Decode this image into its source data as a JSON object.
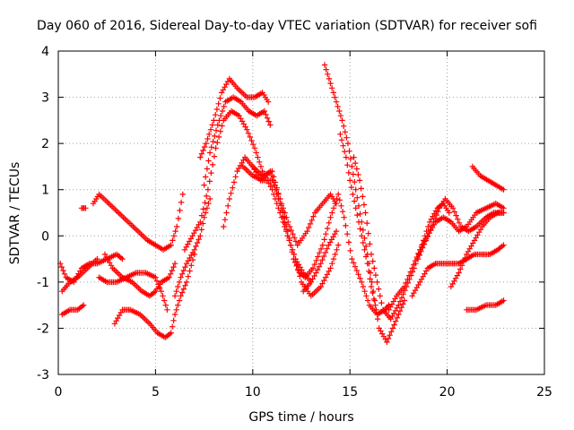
{
  "chart_data": {
    "type": "scatter",
    "title": "Day 060 of 2016, Sidereal Day-to-day VTEC variation (SDTVAR) for receiver sofi",
    "xlabel": "GPS time / hours",
    "ylabel": "SDTVAR / TECUs",
    "xlim": [
      0,
      25
    ],
    "ylim": [
      -3,
      4
    ],
    "x_ticks": [
      "0",
      "5",
      "10",
      "15",
      "20",
      "25"
    ],
    "y_ticks": [
      "-3",
      "-2",
      "-1",
      "0",
      "1",
      "2",
      "3",
      "4"
    ],
    "grid": true,
    "marker": "+",
    "color": "#ff0000",
    "series": [
      {
        "x": [
          0.2,
          0.6,
          1.0,
          1.3
        ],
        "y": [
          -1.7,
          -1.6,
          -1.6,
          -1.5
        ]
      },
      {
        "x": [
          0.2,
          0.6,
          1.0,
          1.5,
          2.0
        ],
        "y": [
          -1.2,
          -1.0,
          -0.9,
          -0.7,
          -0.5
        ]
      },
      {
        "x": [
          0.1,
          0.4,
          0.8,
          1.2,
          1.6,
          2.0,
          2.5,
          3.0,
          3.3
        ],
        "y": [
          -0.6,
          -0.9,
          -1.0,
          -0.7,
          -0.6,
          -0.6,
          -0.5,
          -0.4,
          -0.5
        ]
      },
      {
        "x": [
          1.2,
          1.4
        ],
        "y": [
          0.6,
          0.6
        ]
      },
      {
        "x": [
          1.8,
          2.1,
          2.6,
          3.1,
          3.6,
          4.1,
          4.6,
          5.0,
          5.4,
          5.8,
          6.1,
          6.4
        ],
        "y": [
          0.7,
          0.9,
          0.7,
          0.5,
          0.3,
          0.1,
          -0.1,
          -0.2,
          -0.3,
          -0.2,
          0.2,
          0.9
        ]
      },
      {
        "x": [
          2.1,
          2.5,
          3.0,
          3.5,
          4.0,
          4.5,
          5.0,
          5.3,
          5.6
        ],
        "y": [
          -0.9,
          -1.0,
          -1.0,
          -0.9,
          -0.8,
          -0.8,
          -0.9,
          -1.2,
          -1.6
        ]
      },
      {
        "x": [
          2.4,
          2.8,
          3.3,
          3.8,
          4.3,
          4.7,
          5.0,
          5.3,
          5.7,
          6.0
        ],
        "y": [
          -0.4,
          -0.7,
          -0.9,
          -1.0,
          -1.2,
          -1.3,
          -1.2,
          -1.0,
          -0.9,
          -0.6
        ]
      },
      {
        "x": [
          2.9,
          3.3,
          3.7,
          4.2,
          4.7,
          5.1,
          5.5,
          5.8,
          6.0,
          6.3,
          6.6,
          7.0
        ],
        "y": [
          -1.9,
          -1.6,
          -1.6,
          -1.7,
          -1.9,
          -2.1,
          -2.2,
          -2.1,
          -1.7,
          -1.3,
          -1.0,
          -0.4
        ]
      },
      {
        "x": [
          6.0,
          6.3,
          6.6,
          7.0,
          7.3,
          7.5,
          7.8
        ],
        "y": [
          -1.3,
          -0.9,
          -0.6,
          -0.3,
          0.0,
          0.4,
          0.8
        ]
      },
      {
        "x": [
          7.3,
          7.6,
          8.0,
          8.4,
          8.8,
          9.2,
          9.7,
          10.1,
          10.5,
          10.8
        ],
        "y": [
          1.7,
          2.0,
          2.5,
          3.1,
          3.4,
          3.2,
          3.0,
          3.0,
          3.1,
          2.9
        ]
      },
      {
        "x": [
          7.5,
          7.8,
          8.2,
          8.6,
          9.0,
          9.4,
          9.8,
          10.2,
          10.6,
          10.9
        ],
        "y": [
          1.1,
          1.8,
          2.4,
          2.9,
          3.0,
          2.9,
          2.7,
          2.6,
          2.7,
          2.4
        ]
      },
      {
        "x": [
          6.5,
          6.9,
          7.3,
          7.7,
          8.1,
          8.5,
          8.9,
          9.3,
          9.7,
          10.1,
          10.5,
          11.0,
          11.4,
          11.8,
          12.2,
          12.5,
          13.0,
          13.5,
          14.0,
          14.4
        ],
        "y": [
          -0.3,
          0.0,
          0.3,
          1.0,
          1.9,
          2.5,
          2.7,
          2.6,
          2.3,
          1.9,
          1.4,
          1.0,
          0.5,
          0.0,
          -0.5,
          -1.0,
          -1.3,
          -1.1,
          -0.7,
          -0.2
        ]
      },
      {
        "x": [
          8.5,
          8.8,
          9.2,
          9.6,
          10.0,
          10.4,
          10.9,
          11.4,
          11.9,
          12.3,
          12.8,
          13.2,
          13.6,
          14.0,
          14.3
        ],
        "y": [
          0.2,
          0.8,
          1.4,
          1.7,
          1.5,
          1.2,
          1.4,
          0.8,
          0.2,
          -0.2,
          0.1,
          0.5,
          0.7,
          0.9,
          0.7
        ]
      },
      {
        "x": [
          9.5,
          10.0,
          10.5,
          11.0,
          11.4,
          11.8,
          12.2,
          12.6,
          13.0
        ],
        "y": [
          1.5,
          1.3,
          1.2,
          1.2,
          0.7,
          0.0,
          -0.5,
          -0.8,
          -1.0
        ]
      },
      {
        "x": [
          10.0,
          10.5,
          11.0,
          11.4,
          11.8,
          12.1,
          12.4,
          12.7,
          13.1,
          13.6,
          14.0,
          14.4,
          14.7,
          15.1,
          15.6,
          16.0,
          16.4,
          16.8,
          17.0
        ],
        "y": [
          1.5,
          1.3,
          1.4,
          0.8,
          0.1,
          -0.5,
          -0.8,
          -0.9,
          -0.7,
          -0.2,
          0.4,
          0.9,
          0.4,
          -0.5,
          -1.0,
          -1.5,
          -1.7,
          -1.6,
          -1.5
        ]
      },
      {
        "x": [
          12.6,
          13.0,
          13.5,
          13.9,
          14.3
        ],
        "y": [
          -1.2,
          -1.0,
          -0.6,
          -0.2,
          0.1
        ]
      },
      {
        "x": [
          13.7,
          14.0,
          14.3,
          14.6,
          14.9,
          15.1,
          15.3,
          15.6,
          15.9,
          16.2,
          16.5,
          16.9,
          17.2,
          17.5,
          17.8
        ],
        "y": [
          3.7,
          3.3,
          2.9,
          2.5,
          2.0,
          1.5,
          1.0,
          0.3,
          -0.4,
          -1.2,
          -2.0,
          -2.3,
          -2.0,
          -1.7,
          -1.4
        ]
      },
      {
        "x": [
          14.5,
          14.8,
          15.0,
          15.3,
          15.6,
          15.9,
          16.1,
          16.3
        ],
        "y": [
          2.2,
          1.7,
          1.2,
          0.6,
          0.0,
          -0.6,
          -1.1,
          -1.5
        ]
      },
      {
        "x": [
          15.2,
          15.5,
          15.8,
          16.1,
          16.4,
          16.7,
          17.1,
          17.5,
          17.9,
          18.3,
          18.7,
          19.1,
          19.5,
          19.8,
          20.1
        ],
        "y": [
          1.7,
          1.2,
          0.5,
          -0.4,
          -1.0,
          -1.6,
          -1.8,
          -1.5,
          -1.1,
          -0.7,
          -0.2,
          0.3,
          0.6,
          0.7,
          0.5
        ]
      },
      {
        "x": [
          17.0,
          17.4,
          17.8,
          18.2,
          18.6,
          19.0,
          19.4,
          19.8,
          20.2,
          20.6,
          21.0,
          21.5,
          22.0,
          22.5,
          22.9
        ],
        "y": [
          -1.6,
          -1.3,
          -1.1,
          -0.7,
          -0.3,
          0.0,
          0.3,
          0.4,
          0.3,
          0.1,
          0.2,
          0.5,
          0.6,
          0.7,
          0.6
        ]
      },
      {
        "x": [
          18.2,
          18.6,
          19.0,
          19.4,
          19.8,
          20.2,
          20.6,
          21.0,
          21.4,
          21.8,
          22.2,
          22.6,
          22.9
        ],
        "y": [
          -1.3,
          -1.0,
          -0.7,
          -0.6,
          -0.6,
          -0.6,
          -0.6,
          -0.5,
          -0.4,
          -0.4,
          -0.4,
          -0.3,
          -0.2
        ]
      },
      {
        "x": [
          18.5,
          18.9,
          19.3,
          19.6,
          19.9,
          20.3,
          20.7,
          21.1,
          21.5,
          22.0,
          22.4,
          22.9
        ],
        "y": [
          -0.5,
          -0.1,
          0.3,
          0.6,
          0.8,
          0.6,
          0.2,
          0.1,
          0.2,
          0.4,
          0.5,
          0.5
        ]
      },
      {
        "x": [
          20.2,
          20.6,
          21.0,
          21.4,
          21.8,
          22.2,
          22.6,
          22.9
        ],
        "y": [
          -1.1,
          -0.8,
          -0.4,
          -0.1,
          0.2,
          0.4,
          0.5,
          0.5
        ]
      },
      {
        "x": [
          21.3,
          21.7,
          22.1,
          22.5,
          22.9
        ],
        "y": [
          1.5,
          1.3,
          1.2,
          1.1,
          1.0
        ]
      },
      {
        "x": [
          21.0,
          21.5,
          22.0,
          22.5,
          22.9
        ],
        "y": [
          -1.6,
          -1.6,
          -1.5,
          -1.5,
          -1.4
        ]
      }
    ]
  }
}
